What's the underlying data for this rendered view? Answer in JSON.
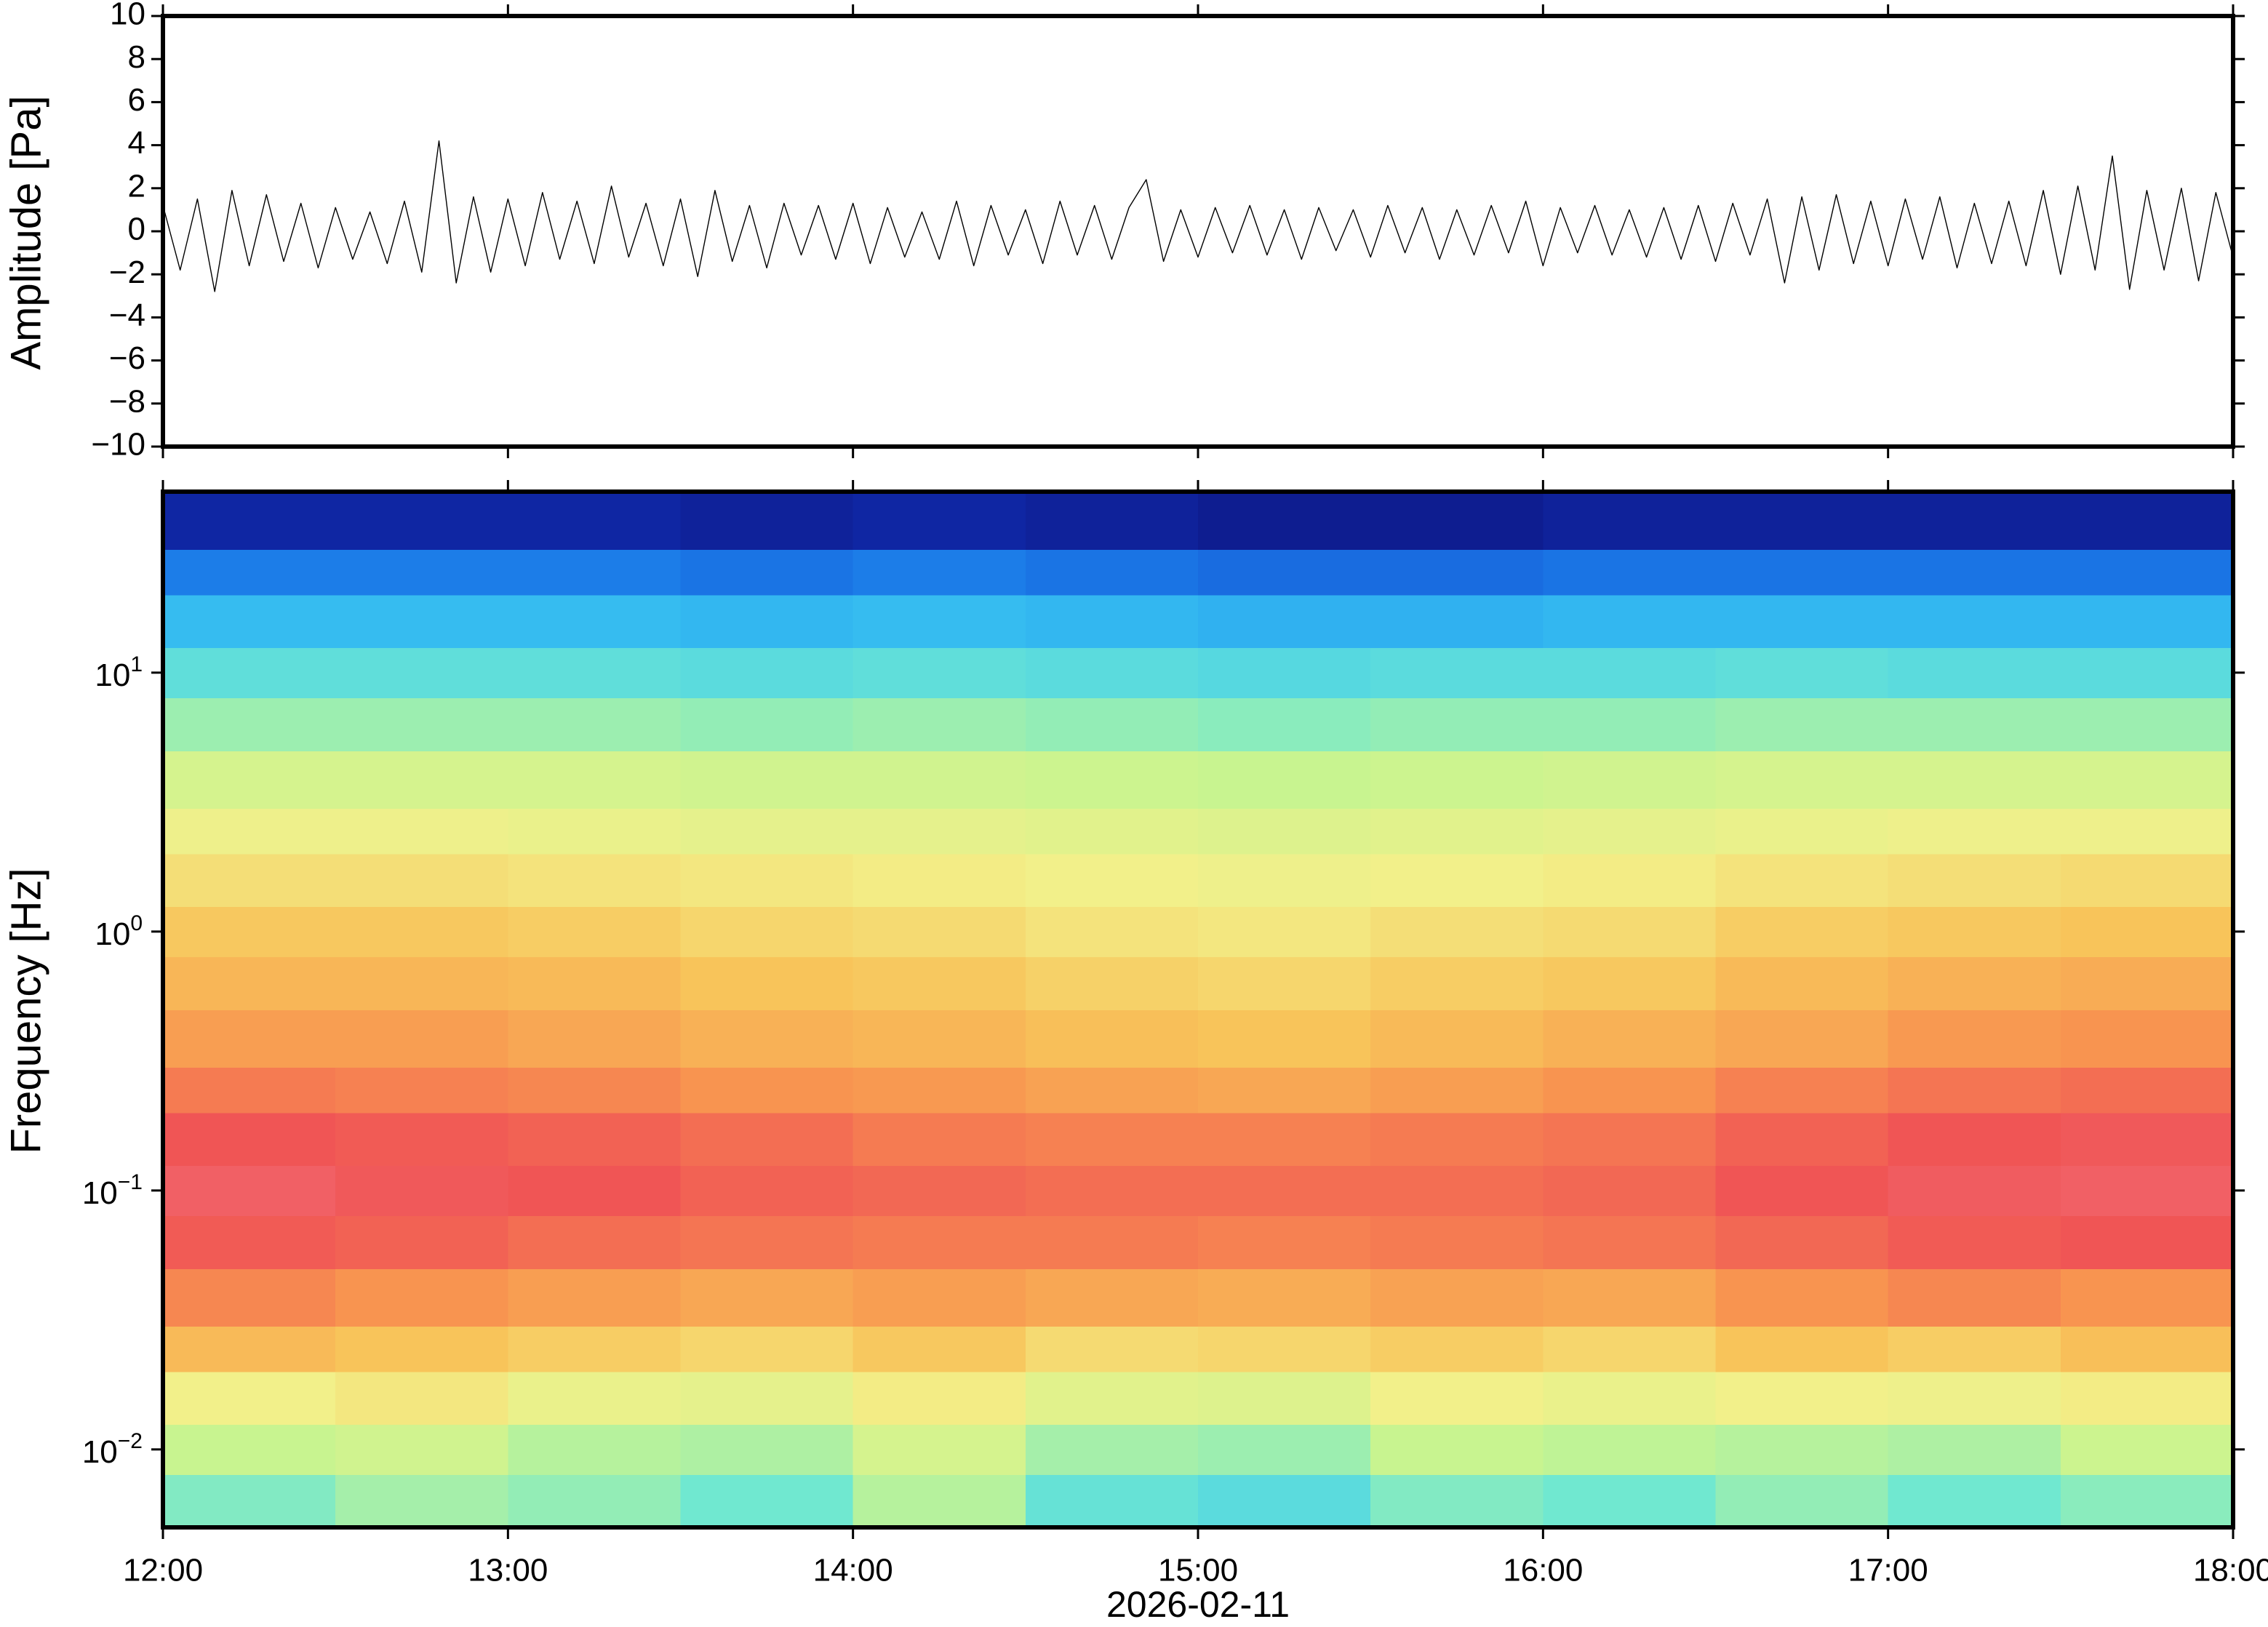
{
  "chart_data": [
    {
      "type": "line",
      "ylabel": "Amplitude [Pa]",
      "color": "#000000",
      "xlim": [
        12,
        18
      ],
      "xticks": [
        12,
        13,
        14,
        15,
        16,
        17,
        18
      ],
      "ylim": [
        -10,
        10
      ],
      "yticks": [
        {
          "value": -10,
          "label": "−10"
        },
        {
          "value": -8,
          "label": "−8"
        },
        {
          "value": -6,
          "label": "−6"
        },
        {
          "value": -4,
          "label": "−4"
        },
        {
          "value": -2,
          "label": "−2"
        },
        0,
        2,
        4,
        6,
        8,
        10
      ],
      "x": [
        12,
        12.05,
        12.1,
        12.15,
        12.2,
        12.25,
        12.3,
        12.35,
        12.4,
        12.45,
        12.5,
        12.55,
        12.6,
        12.65,
        12.7,
        12.75,
        12.8,
        12.85,
        12.9,
        12.95,
        13,
        13.05,
        13.1,
        13.15,
        13.2,
        13.25,
        13.3,
        13.35,
        13.4,
        13.45,
        13.5,
        13.55,
        13.6,
        13.65,
        13.7,
        13.75,
        13.8,
        13.85,
        13.9,
        13.95,
        14,
        14.05,
        14.1,
        14.15,
        14.2,
        14.25,
        14.3,
        14.35,
        14.4,
        14.45,
        14.5,
        14.55,
        14.6,
        14.65,
        14.7,
        14.75,
        14.8,
        14.85,
        14.9,
        14.95,
        15,
        15.05,
        15.1,
        15.15,
        15.2,
        15.25,
        15.3,
        15.35,
        15.4,
        15.45,
        15.5,
        15.55,
        15.6,
        15.65,
        15.7,
        15.75,
        15.8,
        15.85,
        15.9,
        15.95,
        16,
        16.05,
        16.1,
        16.15,
        16.2,
        16.25,
        16.3,
        16.35,
        16.4,
        16.45,
        16.5,
        16.55,
        16.6,
        16.65,
        16.7,
        16.75,
        16.8,
        16.85,
        16.9,
        16.95,
        17,
        17.05,
        17.1,
        17.15,
        17.2,
        17.25,
        17.3,
        17.35,
        17.4,
        17.45,
        17.5,
        17.55,
        17.6,
        17.65,
        17.7,
        17.75,
        17.8,
        17.85,
        17.9,
        17.95,
        18
      ],
      "values": [
        1.2,
        -1.8,
        1.5,
        -2.8,
        1.9,
        -1.6,
        1.7,
        -1.4,
        1.3,
        -1.7,
        1.1,
        -1.3,
        0.9,
        -1.5,
        1.4,
        -1.9,
        4.2,
        -2.4,
        1.6,
        -1.9,
        1.5,
        -1.6,
        1.8,
        -1.3,
        1.4,
        -1.5,
        2.1,
        -1.2,
        1.3,
        -1.6,
        1.5,
        -2.1,
        1.9,
        -1.4,
        1.2,
        -1.7,
        1.3,
        -1.1,
        1.2,
        -1.3,
        1.3,
        -1.5,
        1.1,
        -1.2,
        0.9,
        -1.3,
        1.4,
        -1.6,
        1.2,
        -1.1,
        1.0,
        -1.5,
        1.4,
        -1.1,
        1.2,
        -1.3,
        1.1,
        2.4,
        -1.4,
        1.0,
        -1.2,
        1.1,
        -1.0,
        1.2,
        -1.1,
        1.0,
        -1.3,
        1.1,
        -0.9,
        1.0,
        -1.2,
        1.2,
        -1.0,
        1.1,
        -1.3,
        1.0,
        -1.1,
        1.2,
        -1.0,
        1.4,
        -1.6,
        1.1,
        -1.0,
        1.2,
        -1.1,
        1.0,
        -1.2,
        1.1,
        -1.3,
        1.2,
        -1.4,
        1.3,
        -1.1,
        1.5,
        -2.4,
        1.6,
        -1.8,
        1.7,
        -1.5,
        1.4,
        -1.6,
        1.5,
        -1.3,
        1.6,
        -1.7,
        1.3,
        -1.5,
        1.4,
        -1.6,
        1.9,
        -2.0,
        2.1,
        -1.8,
        3.5,
        -2.7,
        1.9,
        -1.8,
        2.0,
        -2.3,
        1.8,
        -1.2
      ]
    },
    {
      "type": "heatmap",
      "ylabel": "Frequency [Hz]",
      "xlabel": "2026-02-11",
      "log_y": true,
      "xlim": [
        12,
        18
      ],
      "xticks": [
        {
          "value": 12,
          "label": "12:00"
        },
        {
          "value": 13,
          "label": "13:00"
        },
        {
          "value": 14,
          "label": "14:00"
        },
        {
          "value": 15,
          "label": "15:00"
        },
        {
          "value": 16,
          "label": "16:00"
        },
        {
          "value": 17,
          "label": "17:00"
        },
        {
          "value": 18,
          "label": "18:00"
        }
      ],
      "ylim": [
        0.005,
        50
      ],
      "yticks": [
        {
          "value": 0.01,
          "label": "10",
          "exponent": "−2"
        },
        {
          "value": 0.1,
          "label": "10",
          "exponent": "−1"
        },
        {
          "value": 1,
          "label": "10",
          "exponent": "0"
        },
        {
          "value": 10,
          "label": "10",
          "exponent": "1"
        }
      ],
      "xbins": [
        12,
        12.5,
        13,
        13.5,
        14,
        14.5,
        15,
        15.5,
        16,
        16.5,
        17,
        17.5,
        18
      ],
      "ybins": [
        0.005,
        0.008,
        0.0125,
        0.02,
        0.03,
        0.05,
        0.08,
        0.125,
        0.2,
        0.3,
        0.5,
        0.8,
        1.25,
        2,
        3,
        5,
        8,
        12.5,
        20,
        30,
        50
      ],
      "zlim": [
        0,
        1
      ],
      "colormap": [
        "#0b0b6b",
        "#1238c8",
        "#1e8ef0",
        "#3cc8f0",
        "#70e8d0",
        "#c8f490",
        "#f2f08a",
        "#f8c45a",
        "#f89450",
        "#f05555",
        "#f27a8a"
      ],
      "z": [
        [
          0.42,
          0.46,
          0.44,
          0.4,
          0.48,
          0.38,
          0.36,
          0.42,
          0.4,
          0.44,
          0.4,
          0.43
        ],
        [
          0.5,
          0.52,
          0.48,
          0.47,
          0.53,
          0.46,
          0.45,
          0.5,
          0.49,
          0.48,
          0.47,
          0.51
        ],
        [
          0.6,
          0.62,
          0.58,
          0.57,
          0.61,
          0.56,
          0.55,
          0.6,
          0.58,
          0.6,
          0.59,
          0.61
        ],
        [
          0.72,
          0.7,
          0.68,
          0.66,
          0.69,
          0.65,
          0.66,
          0.68,
          0.66,
          0.7,
          0.68,
          0.71
        ],
        [
          0.82,
          0.8,
          0.78,
          0.76,
          0.78,
          0.76,
          0.75,
          0.77,
          0.76,
          0.8,
          0.82,
          0.8
        ],
        [
          0.89,
          0.88,
          0.86,
          0.85,
          0.84,
          0.84,
          0.83,
          0.84,
          0.85,
          0.87,
          0.89,
          0.9
        ],
        [
          0.93,
          0.91,
          0.9,
          0.88,
          0.87,
          0.86,
          0.86,
          0.86,
          0.87,
          0.9,
          0.92,
          0.93
        ],
        [
          0.9,
          0.89,
          0.88,
          0.86,
          0.84,
          0.83,
          0.83,
          0.84,
          0.85,
          0.88,
          0.9,
          0.91
        ],
        [
          0.84,
          0.83,
          0.82,
          0.8,
          0.79,
          0.77,
          0.76,
          0.78,
          0.8,
          0.83,
          0.85,
          0.86
        ],
        [
          0.78,
          0.78,
          0.76,
          0.74,
          0.73,
          0.71,
          0.7,
          0.72,
          0.74,
          0.76,
          0.79,
          0.8
        ],
        [
          0.73,
          0.73,
          0.72,
          0.7,
          0.69,
          0.67,
          0.66,
          0.68,
          0.69,
          0.72,
          0.74,
          0.75
        ],
        [
          0.69,
          0.69,
          0.68,
          0.66,
          0.65,
          0.63,
          0.62,
          0.64,
          0.65,
          0.68,
          0.69,
          0.7
        ],
        [
          0.64,
          0.64,
          0.63,
          0.62,
          0.61,
          0.6,
          0.59,
          0.6,
          0.61,
          0.63,
          0.64,
          0.65
        ],
        [
          0.59,
          0.59,
          0.58,
          0.57,
          0.57,
          0.56,
          0.55,
          0.56,
          0.57,
          0.58,
          0.59,
          0.59
        ],
        [
          0.53,
          0.53,
          0.53,
          0.52,
          0.52,
          0.51,
          0.5,
          0.51,
          0.52,
          0.53,
          0.53,
          0.53
        ],
        [
          0.45,
          0.45,
          0.45,
          0.44,
          0.45,
          0.44,
          0.43,
          0.44,
          0.44,
          0.45,
          0.45,
          0.45
        ],
        [
          0.37,
          0.37,
          0.37,
          0.36,
          0.37,
          0.36,
          0.35,
          0.36,
          0.36,
          0.37,
          0.36,
          0.36
        ],
        [
          0.28,
          0.28,
          0.28,
          0.27,
          0.28,
          0.27,
          0.26,
          0.26,
          0.27,
          0.27,
          0.27,
          0.27
        ],
        [
          0.18,
          0.18,
          0.18,
          0.17,
          0.18,
          0.17,
          0.16,
          0.16,
          0.17,
          0.17,
          0.17,
          0.17
        ],
        [
          0.06,
          0.06,
          0.06,
          0.05,
          0.06,
          0.05,
          0.04,
          0.04,
          0.05,
          0.05,
          0.05,
          0.05
        ]
      ]
    }
  ]
}
